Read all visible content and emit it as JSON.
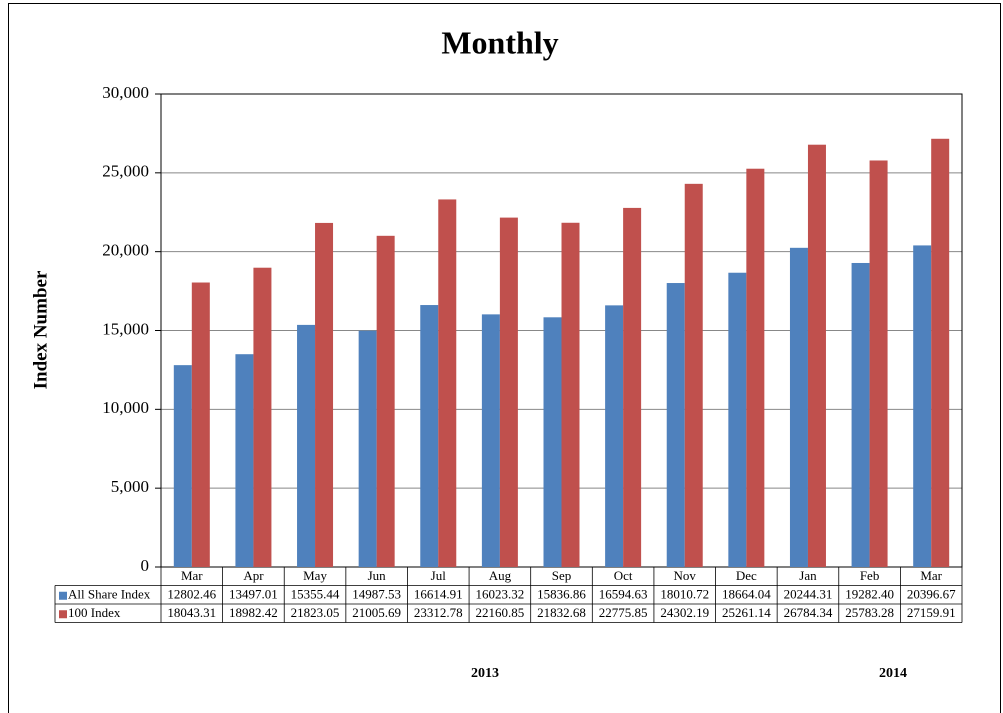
{
  "chart_data": {
    "type": "bar",
    "title": "Monthly",
    "y_label": "Index Number",
    "categories": [
      "Mar",
      "Apr",
      "May",
      "Jun",
      "Jul",
      "Aug",
      "Sep",
      "Oct",
      "Nov",
      "Dec",
      "Jan",
      "Feb",
      "Mar"
    ],
    "series": [
      {
        "name": "All Share Index",
        "color": "#4f81bd",
        "values": [
          12802.46,
          13497.01,
          15355.44,
          14987.53,
          16614.91,
          16023.32,
          15836.86,
          16594.63,
          18010.72,
          18664.04,
          20244.31,
          19282.4,
          20396.67
        ],
        "value_labels": [
          "12802.46",
          "13497.01",
          "15355.44",
          "14987.53",
          "16614.91",
          "16023.32",
          "15836.86",
          "16594.63",
          "18010.72",
          "18664.04",
          "20244.31",
          "19282.40",
          "20396.67"
        ]
      },
      {
        "name": "100 Index",
        "color": "#c0504d",
        "values": [
          18043.31,
          18982.42,
          21823.05,
          21005.69,
          23312.78,
          22160.85,
          21832.68,
          22775.85,
          24302.19,
          25261.14,
          26784.34,
          25783.28,
          27159.91
        ],
        "value_labels": [
          "18043.31",
          "18982.42",
          "21823.05",
          "21005.69",
          "23312.78",
          "22160.85",
          "21832.68",
          "22775.85",
          "24302.19",
          "25261.14",
          "26784.34",
          "25783.28",
          "27159.91"
        ]
      }
    ],
    "ylim": [
      0,
      30000
    ],
    "yticks": [
      0,
      {
        "value": 5000,
        "label": "5,000"
      },
      {
        "value": 10000,
        "label": "10,000"
      },
      {
        "value": 15000,
        "label": "15,000"
      },
      {
        "value": 20000,
        "label": "20,000"
      },
      {
        "value": 25000,
        "label": "25,000"
      },
      {
        "value": 30000,
        "label": "30,000"
      }
    ],
    "grid": true,
    "annotations": [
      "2013",
      "2014"
    ]
  }
}
